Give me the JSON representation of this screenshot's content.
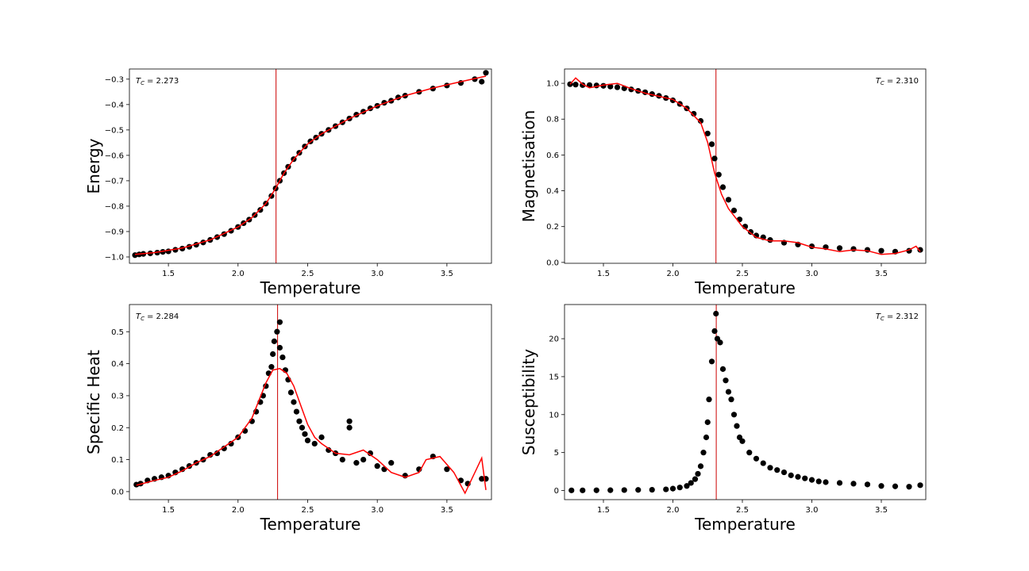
{
  "chart_data": [
    {
      "type": "scatter",
      "id": "energy",
      "xlabel": "Temperature",
      "ylabel": "Energy",
      "xlim": [
        1.22,
        3.82
      ],
      "ylim": [
        -1.025,
        -0.26
      ],
      "xticks": [
        1.5,
        2.0,
        2.5,
        3.0,
        3.5
      ],
      "xtick_labels": [
        "1.5",
        "2.0",
        "2.5",
        "3.0",
        "3.5"
      ],
      "yticks": [
        -1.0,
        -0.9,
        -0.8,
        -0.7,
        -0.6,
        -0.5,
        -0.4,
        -0.3
      ],
      "ytick_labels": [
        "−1.0",
        "−0.9",
        "−0.8",
        "−0.7",
        "−0.6",
        "−0.5",
        "−0.4",
        "−0.3"
      ],
      "annotation": {
        "prefix": "T",
        "subscript": "C",
        "value": "= 2.273",
        "position": "top-left"
      },
      "critical_temperature": 2.273,
      "points": [
        [
          1.26,
          -0.993
        ],
        [
          1.29,
          -0.99
        ],
        [
          1.32,
          -0.988
        ],
        [
          1.37,
          -0.986
        ],
        [
          1.42,
          -0.983
        ],
        [
          1.46,
          -0.98
        ],
        [
          1.5,
          -0.978
        ],
        [
          1.55,
          -0.972
        ],
        [
          1.6,
          -0.967
        ],
        [
          1.65,
          -0.96
        ],
        [
          1.7,
          -0.952
        ],
        [
          1.75,
          -0.943
        ],
        [
          1.8,
          -0.933
        ],
        [
          1.85,
          -0.922
        ],
        [
          1.9,
          -0.91
        ],
        [
          1.95,
          -0.897
        ],
        [
          2.0,
          -0.882
        ],
        [
          2.04,
          -0.867
        ],
        [
          2.08,
          -0.853
        ],
        [
          2.12,
          -0.835
        ],
        [
          2.16,
          -0.815
        ],
        [
          2.2,
          -0.79
        ],
        [
          2.24,
          -0.76
        ],
        [
          2.27,
          -0.73
        ],
        [
          2.3,
          -0.7
        ],
        [
          2.33,
          -0.67
        ],
        [
          2.36,
          -0.645
        ],
        [
          2.4,
          -0.615
        ],
        [
          2.44,
          -0.59
        ],
        [
          2.48,
          -0.565
        ],
        [
          2.52,
          -0.545
        ],
        [
          2.56,
          -0.53
        ],
        [
          2.6,
          -0.515
        ],
        [
          2.65,
          -0.5
        ],
        [
          2.7,
          -0.485
        ],
        [
          2.75,
          -0.47
        ],
        [
          2.8,
          -0.455
        ],
        [
          2.85,
          -0.44
        ],
        [
          2.9,
          -0.428
        ],
        [
          2.95,
          -0.415
        ],
        [
          3.0,
          -0.405
        ],
        [
          3.05,
          -0.393
        ],
        [
          3.1,
          -0.385
        ],
        [
          3.15,
          -0.372
        ],
        [
          3.2,
          -0.365
        ],
        [
          3.3,
          -0.35
        ],
        [
          3.4,
          -0.337
        ],
        [
          3.5,
          -0.325
        ],
        [
          3.6,
          -0.315
        ],
        [
          3.7,
          -0.3
        ],
        [
          3.75,
          -0.31
        ],
        [
          3.78,
          -0.275
        ]
      ],
      "fit_curve": [
        [
          1.26,
          -0.99
        ],
        [
          1.4,
          -0.983
        ],
        [
          1.6,
          -0.965
        ],
        [
          1.8,
          -0.933
        ],
        [
          2.0,
          -0.882
        ],
        [
          2.1,
          -0.845
        ],
        [
          2.2,
          -0.79
        ],
        [
          2.27,
          -0.73
        ],
        [
          2.33,
          -0.67
        ],
        [
          2.4,
          -0.615
        ],
        [
          2.5,
          -0.555
        ],
        [
          2.6,
          -0.515
        ],
        [
          2.7,
          -0.485
        ],
        [
          2.8,
          -0.455
        ],
        [
          3.0,
          -0.405
        ],
        [
          3.2,
          -0.365
        ],
        [
          3.4,
          -0.335
        ],
        [
          3.6,
          -0.31
        ],
        [
          3.78,
          -0.288
        ]
      ]
    },
    {
      "type": "scatter",
      "id": "magnetisation",
      "xlabel": "Temperature",
      "ylabel": "Magnetisation",
      "xlim": [
        1.22,
        3.82
      ],
      "ylim": [
        -0.005,
        1.08
      ],
      "xticks": [
        1.5,
        2.0,
        2.5,
        3.0,
        3.5
      ],
      "xtick_labels": [
        "1.5",
        "2.0",
        "2.5",
        "3.0",
        "3.5"
      ],
      "yticks": [
        0.0,
        0.2,
        0.4,
        0.6,
        0.8,
        1.0
      ],
      "ytick_labels": [
        "0.0",
        "0.2",
        "0.4",
        "0.6",
        "0.8",
        "1.0"
      ],
      "annotation": {
        "prefix": "T",
        "subscript": "C",
        "value": "= 2.310",
        "position": "top-right"
      },
      "critical_temperature": 2.31,
      "points": [
        [
          1.26,
          0.995
        ],
        [
          1.3,
          0.993
        ],
        [
          1.35,
          0.99
        ],
        [
          1.4,
          0.99
        ],
        [
          1.45,
          0.988
        ],
        [
          1.5,
          0.986
        ],
        [
          1.55,
          0.982
        ],
        [
          1.6,
          0.978
        ],
        [
          1.65,
          0.972
        ],
        [
          1.7,
          0.966
        ],
        [
          1.75,
          0.958
        ],
        [
          1.8,
          0.95
        ],
        [
          1.85,
          0.94
        ],
        [
          1.9,
          0.93
        ],
        [
          1.95,
          0.918
        ],
        [
          2.0,
          0.905
        ],
        [
          2.05,
          0.885
        ],
        [
          2.1,
          0.86
        ],
        [
          2.15,
          0.83
        ],
        [
          2.2,
          0.79
        ],
        [
          2.25,
          0.72
        ],
        [
          2.28,
          0.66
        ],
        [
          2.3,
          0.58
        ],
        [
          2.33,
          0.49
        ],
        [
          2.36,
          0.42
        ],
        [
          2.4,
          0.35
        ],
        [
          2.44,
          0.29
        ],
        [
          2.48,
          0.24
        ],
        [
          2.52,
          0.2
        ],
        [
          2.56,
          0.17
        ],
        [
          2.6,
          0.15
        ],
        [
          2.65,
          0.14
        ],
        [
          2.7,
          0.125
        ],
        [
          2.8,
          0.11
        ],
        [
          2.9,
          0.1
        ],
        [
          3.0,
          0.09
        ],
        [
          3.1,
          0.085
        ],
        [
          3.2,
          0.08
        ],
        [
          3.3,
          0.075
        ],
        [
          3.4,
          0.07
        ],
        [
          3.5,
          0.065
        ],
        [
          3.6,
          0.06
        ],
        [
          3.7,
          0.065
        ],
        [
          3.78,
          0.07
        ]
      ],
      "fit_curve": [
        [
          1.26,
          0.995
        ],
        [
          1.3,
          1.03
        ],
        [
          1.35,
          0.995
        ],
        [
          1.4,
          0.975
        ],
        [
          1.5,
          0.99
        ],
        [
          1.6,
          1.0
        ],
        [
          1.7,
          0.97
        ],
        [
          1.8,
          0.945
        ],
        [
          2.0,
          0.91
        ],
        [
          2.1,
          0.86
        ],
        [
          2.2,
          0.78
        ],
        [
          2.25,
          0.67
        ],
        [
          2.3,
          0.5
        ],
        [
          2.35,
          0.38
        ],
        [
          2.4,
          0.3
        ],
        [
          2.5,
          0.2
        ],
        [
          2.6,
          0.14
        ],
        [
          2.7,
          0.12
        ],
        [
          2.8,
          0.12
        ],
        [
          2.9,
          0.11
        ],
        [
          3.0,
          0.085
        ],
        [
          3.1,
          0.075
        ],
        [
          3.2,
          0.06
        ],
        [
          3.3,
          0.07
        ],
        [
          3.4,
          0.065
        ],
        [
          3.5,
          0.045
        ],
        [
          3.6,
          0.05
        ],
        [
          3.7,
          0.07
        ],
        [
          3.75,
          0.09
        ],
        [
          3.78,
          0.06
        ]
      ]
    },
    {
      "type": "scatter",
      "id": "specific-heat",
      "xlabel": "Temperature",
      "ylabel": "Specific Heat",
      "xlim": [
        1.22,
        3.82
      ],
      "ylim": [
        -0.025,
        0.585
      ],
      "xticks": [
        1.5,
        2.0,
        2.5,
        3.0,
        3.5
      ],
      "xtick_labels": [
        "1.5",
        "2.0",
        "2.5",
        "3.0",
        "3.5"
      ],
      "yticks": [
        0.0,
        0.1,
        0.2,
        0.3,
        0.4,
        0.5
      ],
      "ytick_labels": [
        "0.0",
        "0.1",
        "0.2",
        "0.3",
        "0.4",
        "0.5"
      ],
      "annotation": {
        "prefix": "T",
        "subscript": "C",
        "value": "= 2.284",
        "position": "top-left"
      },
      "critical_temperature": 2.284,
      "points": [
        [
          1.27,
          0.022
        ],
        [
          1.3,
          0.025
        ],
        [
          1.35,
          0.035
        ],
        [
          1.4,
          0.04
        ],
        [
          1.45,
          0.045
        ],
        [
          1.5,
          0.05
        ],
        [
          1.55,
          0.06
        ],
        [
          1.6,
          0.07
        ],
        [
          1.65,
          0.08
        ],
        [
          1.7,
          0.09
        ],
        [
          1.75,
          0.1
        ],
        [
          1.8,
          0.115
        ],
        [
          1.85,
          0.12
        ],
        [
          1.9,
          0.135
        ],
        [
          1.95,
          0.15
        ],
        [
          2.0,
          0.17
        ],
        [
          2.05,
          0.19
        ],
        [
          2.1,
          0.22
        ],
        [
          2.13,
          0.25
        ],
        [
          2.16,
          0.28
        ],
        [
          2.18,
          0.3
        ],
        [
          2.2,
          0.33
        ],
        [
          2.22,
          0.37
        ],
        [
          2.24,
          0.39
        ],
        [
          2.25,
          0.43
        ],
        [
          2.26,
          0.47
        ],
        [
          2.28,
          0.5
        ],
        [
          2.3,
          0.53
        ],
        [
          2.3,
          0.45
        ],
        [
          2.32,
          0.42
        ],
        [
          2.34,
          0.38
        ],
        [
          2.36,
          0.35
        ],
        [
          2.38,
          0.31
        ],
        [
          2.4,
          0.28
        ],
        [
          2.42,
          0.25
        ],
        [
          2.44,
          0.22
        ],
        [
          2.46,
          0.2
        ],
        [
          2.48,
          0.18
        ],
        [
          2.5,
          0.16
        ],
        [
          2.55,
          0.15
        ],
        [
          2.6,
          0.17
        ],
        [
          2.65,
          0.13
        ],
        [
          2.7,
          0.12
        ],
        [
          2.75,
          0.1
        ],
        [
          2.8,
          0.22
        ],
        [
          2.8,
          0.2
        ],
        [
          2.85,
          0.09
        ],
        [
          2.9,
          0.1
        ],
        [
          2.95,
          0.12
        ],
        [
          3.0,
          0.08
        ],
        [
          3.05,
          0.07
        ],
        [
          3.1,
          0.09
        ],
        [
          3.2,
          0.05
        ],
        [
          3.3,
          0.07
        ],
        [
          3.4,
          0.11
        ],
        [
          3.5,
          0.07
        ],
        [
          3.6,
          0.035
        ],
        [
          3.65,
          0.025
        ],
        [
          3.75,
          0.04
        ],
        [
          3.78,
          0.04
        ]
      ],
      "fit_curve": [
        [
          1.27,
          0.02
        ],
        [
          1.4,
          0.035
        ],
        [
          1.5,
          0.045
        ],
        [
          1.6,
          0.065
        ],
        [
          1.7,
          0.09
        ],
        [
          1.8,
          0.11
        ],
        [
          1.9,
          0.14
        ],
        [
          2.0,
          0.17
        ],
        [
          2.1,
          0.23
        ],
        [
          2.2,
          0.34
        ],
        [
          2.25,
          0.38
        ],
        [
          2.3,
          0.385
        ],
        [
          2.35,
          0.37
        ],
        [
          2.4,
          0.33
        ],
        [
          2.45,
          0.27
        ],
        [
          2.5,
          0.21
        ],
        [
          2.55,
          0.17
        ],
        [
          2.6,
          0.15
        ],
        [
          2.7,
          0.12
        ],
        [
          2.8,
          0.115
        ],
        [
          2.9,
          0.13
        ],
        [
          3.0,
          0.1
        ],
        [
          3.1,
          0.06
        ],
        [
          3.2,
          0.045
        ],
        [
          3.3,
          0.06
        ],
        [
          3.35,
          0.1
        ],
        [
          3.45,
          0.11
        ],
        [
          3.55,
          0.06
        ],
        [
          3.63,
          -0.005
        ],
        [
          3.75,
          0.105
        ],
        [
          3.78,
          0.005
        ]
      ]
    },
    {
      "type": "scatter",
      "id": "susceptibility",
      "xlabel": "Temperature",
      "ylabel": "Susceptibility",
      "xlim": [
        1.22,
        3.82
      ],
      "ylim": [
        -1.2,
        24.5
      ],
      "xticks": [
        1.5,
        2.0,
        2.5,
        3.0,
        3.5
      ],
      "xtick_labels": [
        "1.5",
        "2.0",
        "2.5",
        "3.0",
        "3.5"
      ],
      "yticks": [
        0,
        5,
        10,
        15,
        20
      ],
      "ytick_labels": [
        "0",
        "5",
        "10",
        "15",
        "20"
      ],
      "annotation": {
        "prefix": "T",
        "subscript": "C",
        "value": "= 2.312",
        "position": "top-right"
      },
      "critical_temperature": 2.312,
      "points": [
        [
          1.27,
          0.02
        ],
        [
          1.35,
          0.02
        ],
        [
          1.45,
          0.03
        ],
        [
          1.55,
          0.04
        ],
        [
          1.65,
          0.06
        ],
        [
          1.75,
          0.08
        ],
        [
          1.85,
          0.1
        ],
        [
          1.95,
          0.15
        ],
        [
          2.0,
          0.25
        ],
        [
          2.05,
          0.4
        ],
        [
          2.1,
          0.6
        ],
        [
          2.13,
          1.0
        ],
        [
          2.16,
          1.5
        ],
        [
          2.18,
          2.2
        ],
        [
          2.2,
          3.2
        ],
        [
          2.22,
          5.0
        ],
        [
          2.24,
          7.0
        ],
        [
          2.25,
          9.0
        ],
        [
          2.26,
          12.0
        ],
        [
          2.28,
          17.0
        ],
        [
          2.3,
          21.0
        ],
        [
          2.31,
          23.3
        ],
        [
          2.32,
          20.0
        ],
        [
          2.34,
          19.5
        ],
        [
          2.36,
          16.0
        ],
        [
          2.38,
          14.5
        ],
        [
          2.4,
          13.0
        ],
        [
          2.42,
          12.0
        ],
        [
          2.44,
          10.0
        ],
        [
          2.46,
          8.5
        ],
        [
          2.48,
          7.0
        ],
        [
          2.5,
          6.5
        ],
        [
          2.55,
          5.0
        ],
        [
          2.6,
          4.2
        ],
        [
          2.65,
          3.6
        ],
        [
          2.7,
          3.0
        ],
        [
          2.75,
          2.7
        ],
        [
          2.8,
          2.4
        ],
        [
          2.85,
          2.0
        ],
        [
          2.9,
          1.8
        ],
        [
          2.95,
          1.6
        ],
        [
          3.0,
          1.4
        ],
        [
          3.05,
          1.2
        ],
        [
          3.1,
          1.1
        ],
        [
          3.2,
          1.0
        ],
        [
          3.3,
          0.9
        ],
        [
          3.4,
          0.8
        ],
        [
          3.5,
          0.6
        ],
        [
          3.6,
          0.55
        ],
        [
          3.7,
          0.5
        ],
        [
          3.78,
          0.7
        ]
      ]
    }
  ],
  "colors": {
    "points": "#000000",
    "fit_line": "#ff0000",
    "critical_line": "#cc0000"
  }
}
